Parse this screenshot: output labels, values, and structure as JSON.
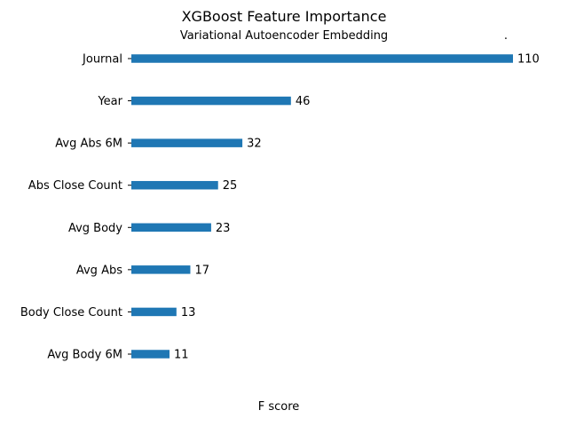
{
  "chart_data": {
    "type": "bar",
    "orientation": "horizontal",
    "title": "XGBoost Feature Importance",
    "subtitle": "Variational Autoencoder Embedding",
    "subtitle_mark": ".",
    "xlabel": "F score",
    "ylabel": "",
    "categories": [
      "Journal",
      "Year",
      "Avg Abs 6M",
      "Abs Close Count",
      "Avg Body",
      "Avg Abs",
      "Body Close Count",
      "Avg Body 6M"
    ],
    "values": [
      110,
      46,
      32,
      25,
      23,
      17,
      13,
      11
    ],
    "bar_color": "#1f77b4",
    "grid": false
  }
}
